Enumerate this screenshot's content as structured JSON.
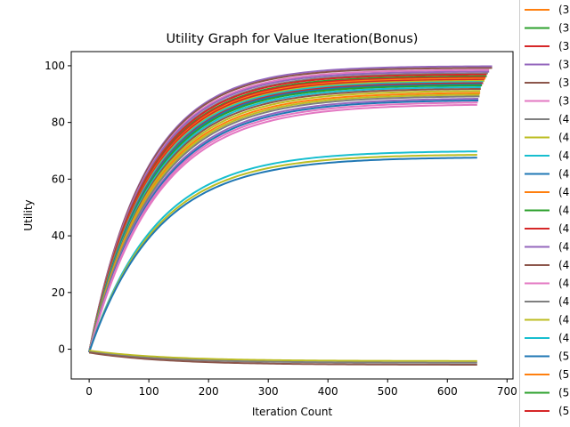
{
  "chart_data": {
    "type": "line",
    "title": "Utility Graph for Value Iteration(Bonus)",
    "xlabel": "Iteration Count",
    "ylabel": "Utility",
    "xlim": [
      -30,
      710
    ],
    "ylim": [
      -10.5,
      105
    ],
    "xticks": [
      0,
      100,
      200,
      300,
      400,
      500,
      600,
      700
    ],
    "yticks": [
      0,
      20,
      40,
      60,
      80,
      100
    ],
    "grid": false,
    "legend_position": "right (clipped)",
    "legend": {
      "partial_labels": [
        "(3",
        "(3",
        "(3",
        "(3",
        "(3",
        "(3",
        "(4",
        "(4",
        "(4",
        "(4",
        "(4",
        "(4",
        "(4",
        "(4",
        "(4",
        "(4",
        "(4",
        "(4",
        "(4",
        "(5",
        "(5",
        "(5",
        "(5"
      ],
      "colors": [
        "#ff7f0e",
        "#2ca02c",
        "#d62728",
        "#9467bd",
        "#8c564b",
        "#e377c2",
        "#7f7f7f",
        "#bcbd22",
        "#17becf",
        "#1f77b4",
        "#ff7f0e",
        "#2ca02c",
        "#d62728",
        "#9467bd",
        "#8c564b",
        "#e377c2",
        "#7f7f7f",
        "#bcbd22",
        "#17becf",
        "#1f77b4",
        "#ff7f0e",
        "#2ca02c",
        "#d62728"
      ]
    },
    "series_model": "utility(t) = start + (final - start) * (1 - exp(-t / tau))",
    "series": [
      {
        "color": "#9467bd",
        "start": -1,
        "final": 99.9,
        "tau": 95,
        "x_end": 675
      },
      {
        "color": "#8c564b",
        "start": -1,
        "final": 99.3,
        "tau": 95,
        "x_end": 675
      },
      {
        "color": "#e377c2",
        "start": -1,
        "final": 98.6,
        "tau": 96,
        "x_end": 670
      },
      {
        "color": "#9467bd",
        "start": -1,
        "final": 98.0,
        "tau": 96,
        "x_end": 670
      },
      {
        "color": "#7f7f7f",
        "start": -1,
        "final": 97.4,
        "tau": 97,
        "x_end": 668
      },
      {
        "color": "#d62728",
        "start": -1,
        "final": 97.0,
        "tau": 97,
        "x_end": 666
      },
      {
        "color": "#2ca02c",
        "start": -1,
        "final": 96.4,
        "tau": 98,
        "x_end": 666
      },
      {
        "color": "#d62728",
        "start": -1,
        "final": 96.0,
        "tau": 98,
        "x_end": 664
      },
      {
        "color": "#ff7f0e",
        "start": -1,
        "final": 95.6,
        "tau": 99,
        "x_end": 664
      },
      {
        "color": "#d62728",
        "start": -1,
        "final": 95.2,
        "tau": 99,
        "x_end": 662
      },
      {
        "color": "#bcbd22",
        "start": -1,
        "final": 94.8,
        "tau": 100,
        "x_end": 662
      },
      {
        "color": "#17becf",
        "start": -1,
        "final": 94.4,
        "tau": 100,
        "x_end": 660
      },
      {
        "color": "#d62728",
        "start": -1,
        "final": 94.0,
        "tau": 101,
        "x_end": 660
      },
      {
        "color": "#1f77b4",
        "start": -1,
        "final": 93.6,
        "tau": 101,
        "x_end": 658
      },
      {
        "color": "#2ca02c",
        "start": -1,
        "final": 93.2,
        "tau": 102,
        "x_end": 658
      },
      {
        "color": "#17becf",
        "start": -1,
        "final": 92.6,
        "tau": 103,
        "x_end": 656
      },
      {
        "color": "#8c564b",
        "start": -1,
        "final": 92.0,
        "tau": 104,
        "x_end": 656
      },
      {
        "color": "#bcbd22",
        "start": -1,
        "final": 91.3,
        "tau": 105,
        "x_end": 655
      },
      {
        "color": "#ff7f0e",
        "start": -1,
        "final": 90.6,
        "tau": 106,
        "x_end": 655
      },
      {
        "color": "#bcbd22",
        "start": -1,
        "final": 90.0,
        "tau": 107,
        "x_end": 654
      },
      {
        "color": "#7f7f7f",
        "start": -1,
        "final": 89.4,
        "tau": 108,
        "x_end": 654
      },
      {
        "color": "#9467bd",
        "start": -1,
        "final": 88.6,
        "tau": 110,
        "x_end": 652
      },
      {
        "color": "#1f77b4",
        "start": -1,
        "final": 88.0,
        "tau": 111,
        "x_end": 652
      },
      {
        "color": "#e377c2",
        "start": -1,
        "final": 87.3,
        "tau": 112,
        "x_end": 651
      },
      {
        "color": "#e377c2",
        "start": -1,
        "final": 86.5,
        "tau": 113,
        "x_end": 650
      },
      {
        "color": "#17becf",
        "start": -1,
        "final": 70.0,
        "tau": 112,
        "x_end": 650
      },
      {
        "color": "#bcbd22",
        "start": -1,
        "final": 68.8,
        "tau": 113,
        "x_end": 650
      },
      {
        "color": "#1f77b4",
        "start": -1,
        "final": 67.8,
        "tau": 114,
        "x_end": 650
      },
      {
        "color": "#bcbd22",
        "start": -0.5,
        "final": -4.2,
        "tau": 130,
        "x_end": 650
      },
      {
        "color": "#7f7f7f",
        "start": -1.0,
        "final": -4.8,
        "tau": 130,
        "x_end": 650
      },
      {
        "color": "#8c564b",
        "start": -1.2,
        "final": -5.5,
        "tau": 130,
        "x_end": 650
      }
    ]
  }
}
